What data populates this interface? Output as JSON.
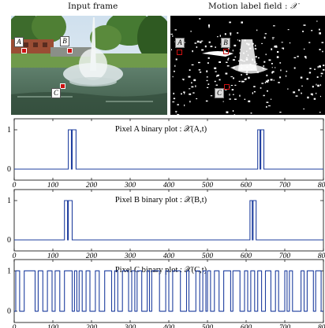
{
  "figure": {
    "left_caption": "Input frame",
    "right_caption_prefix": "Motion label field : ",
    "right_caption_symbol": "𝒳"
  },
  "markers": {
    "left": [
      {
        "label": "A"
      },
      {
        "label": "B"
      },
      {
        "label": "C"
      }
    ],
    "right": [
      {
        "label": "A"
      },
      {
        "label": "B"
      },
      {
        "label": "C"
      }
    ]
  },
  "colors": {
    "series": "#1f3f9f",
    "marker": "#cc1111",
    "motion_background": "#000000"
  },
  "chart_data": [
    {
      "type": "line",
      "title": "Pixel  A  binary plot : 𝒳(A,t)",
      "xlim": [
        0,
        800
      ],
      "ylim": [
        -0.2,
        1.2
      ],
      "xticks": [
        0,
        100,
        200,
        300,
        400,
        500,
        600,
        700,
        800
      ],
      "yticks": [
        0,
        1
      ],
      "pulses": [
        [
          140,
          148
        ],
        [
          150,
          160
        ],
        [
          630,
          636
        ],
        [
          638,
          646
        ]
      ]
    },
    {
      "type": "line",
      "title": "Pixel  B  binary plot : 𝒳(B,t)",
      "xlim": [
        0,
        800
      ],
      "ylim": [
        -0.2,
        1.2
      ],
      "xticks": [
        0,
        100,
        200,
        300,
        400,
        500,
        600,
        700,
        800
      ],
      "yticks": [
        0,
        1
      ],
      "pulses": [
        [
          130,
          138
        ],
        [
          140,
          150
        ],
        [
          610,
          616
        ],
        [
          618,
          626
        ]
      ]
    },
    {
      "type": "line",
      "title": "Pixel  C   binary plot : 𝒳(C,t)",
      "xlim": [
        0,
        800
      ],
      "ylim": [
        -0.2,
        1.2
      ],
      "xticks": [
        0,
        100,
        200,
        300,
        400,
        500,
        600,
        700,
        800
      ],
      "yticks": [
        0,
        1
      ],
      "pulses": [
        [
          4,
          14
        ],
        [
          26,
          54
        ],
        [
          62,
          74
        ],
        [
          86,
          98
        ],
        [
          106,
          118
        ],
        [
          130,
          150
        ],
        [
          156,
          162
        ],
        [
          168,
          176
        ],
        [
          186,
          196
        ],
        [
          210,
          220
        ],
        [
          234,
          252
        ],
        [
          260,
          268
        ],
        [
          280,
          296
        ],
        [
          304,
          312
        ],
        [
          318,
          330
        ],
        [
          344,
          350
        ],
        [
          356,
          376
        ],
        [
          392,
          400
        ],
        [
          410,
          430
        ],
        [
          446,
          452
        ],
        [
          470,
          480
        ],
        [
          488,
          496
        ],
        [
          500,
          508
        ],
        [
          518,
          530
        ],
        [
          542,
          560
        ],
        [
          566,
          584
        ],
        [
          596,
          604
        ],
        [
          612,
          622
        ],
        [
          630,
          640
        ],
        [
          650,
          664
        ],
        [
          676,
          684
        ],
        [
          700,
          706
        ],
        [
          712,
          720
        ],
        [
          742,
          750
        ],
        [
          758,
          774
        ],
        [
          780,
          794
        ]
      ]
    }
  ]
}
